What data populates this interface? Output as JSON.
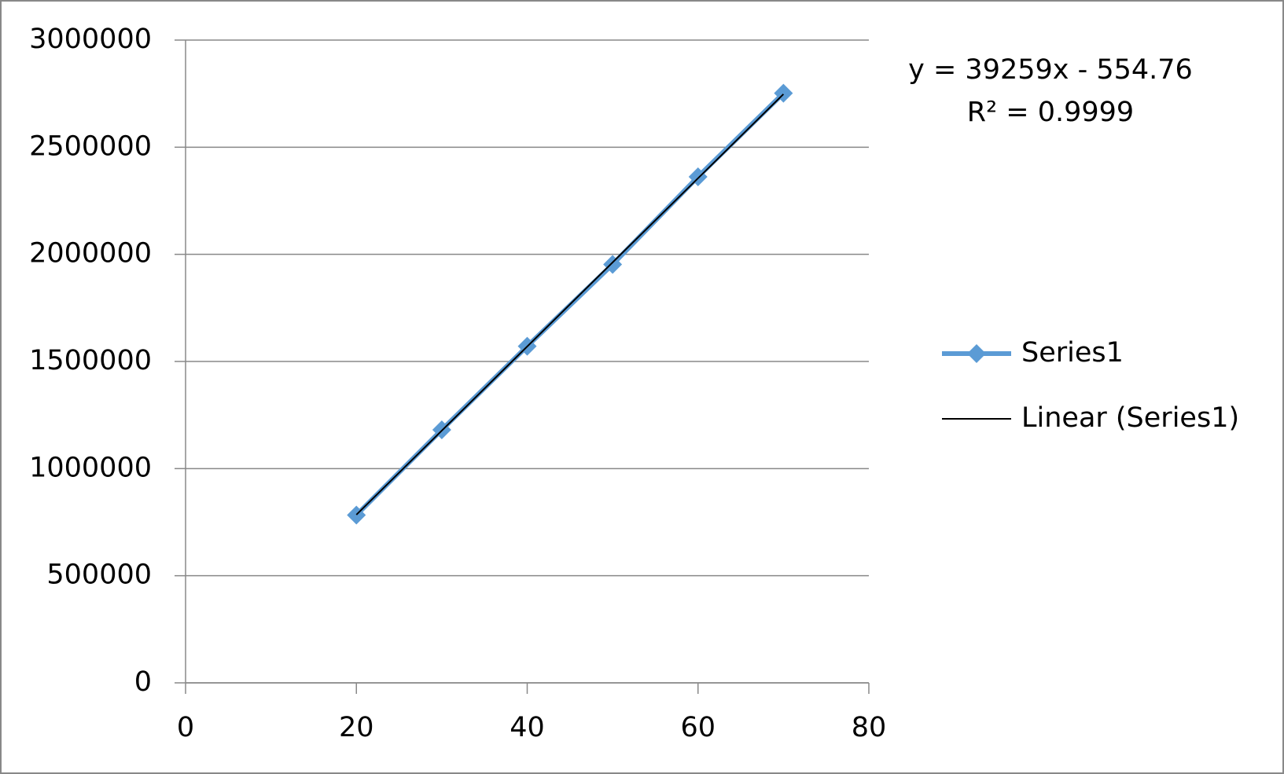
{
  "chart_data": {
    "type": "scatter",
    "xlim": [
      0,
      80
    ],
    "xticks": [
      0,
      20,
      40,
      60,
      80
    ],
    "ylim": [
      0,
      3000000
    ],
    "yticks": [
      0,
      500000,
      1000000,
      1500000,
      2000000,
      2500000,
      3000000
    ],
    "grid": true,
    "legend": "right",
    "series": [
      {
        "name": "Series1",
        "color": "#5b9bd5",
        "marker": "diamond",
        "x": [
          20,
          30,
          40,
          50,
          60,
          70
        ],
        "values": [
          783000,
          1181000,
          1571000,
          1953000,
          2362000,
          2752000
        ]
      },
      {
        "name": "Linear (Series1)",
        "color": "#000000",
        "marker": "none",
        "x": [
          20,
          70
        ],
        "values": [
          784625,
          2747575
        ]
      }
    ],
    "annotations": [
      "y = 39259x - 554.76",
      "R² = 0.9999"
    ]
  }
}
